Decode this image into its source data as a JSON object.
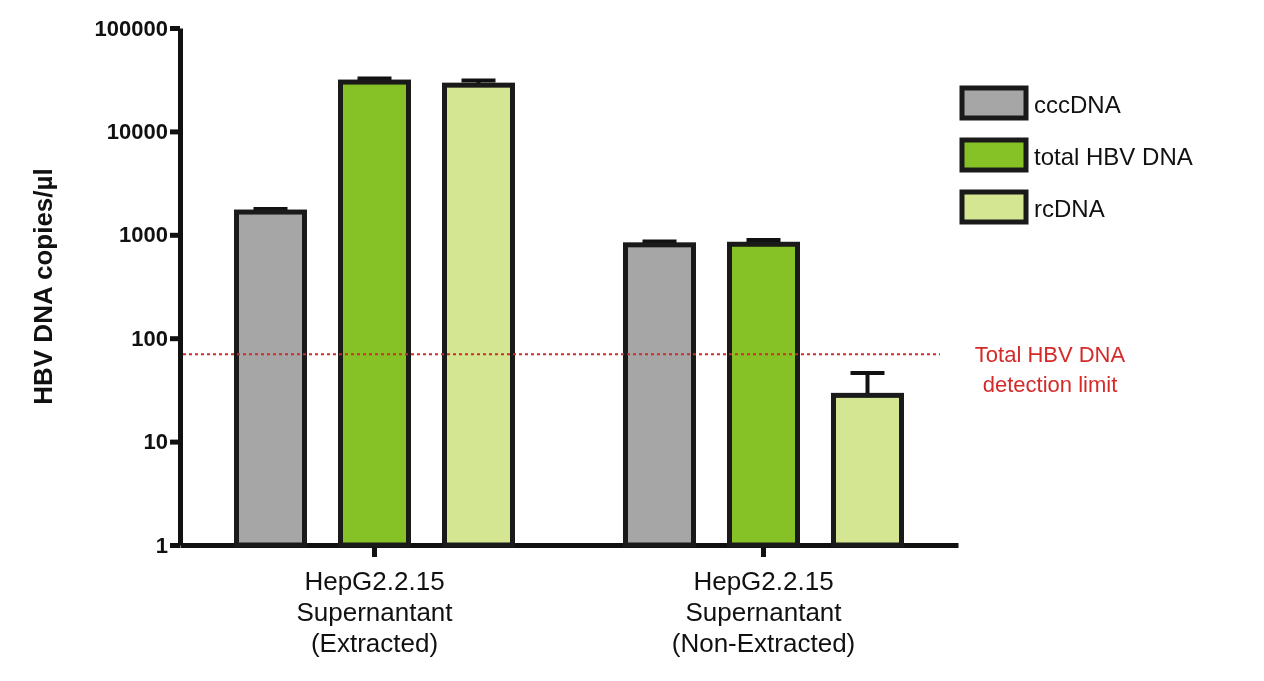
{
  "chart_data": {
    "type": "bar",
    "ylabel": "HBV DNA copies/µl",
    "categories": [
      "HepG2.2.15\nSupernantant\n(Extracted)",
      "HepG2.2.15\nSupernantant\n(Non-Extracted)"
    ],
    "series": [
      {
        "name": "cccDNA",
        "color": "#a6a6a6",
        "values": [
          1660,
          800
        ],
        "errors": [
          [
            1660,
            1780
          ],
          [
            800,
            860
          ]
        ]
      },
      {
        "name": "total HBV DNA",
        "color": "#86c226",
        "values": [
          30000,
          810
        ],
        "errors": [
          [
            30000,
            32500
          ],
          [
            810,
            890
          ]
        ]
      },
      {
        "name": "rcDNA",
        "color": "#d4e691",
        "values": [
          28000,
          28
        ],
        "errors": [
          [
            28000,
            31000
          ],
          [
            28,
            46
          ]
        ]
      }
    ],
    "log": true,
    "ylim": [
      1,
      100000
    ],
    "yticks": [
      1,
      10,
      100,
      1000,
      10000,
      100000
    ],
    "ref_lines": [
      {
        "axis": "y",
        "value": 70,
        "label": "Total HBV DNA\ndetection limit",
        "color": "#d42a2a",
        "line_style": "dotted"
      }
    ],
    "legend": "top right",
    "grid": false
  }
}
